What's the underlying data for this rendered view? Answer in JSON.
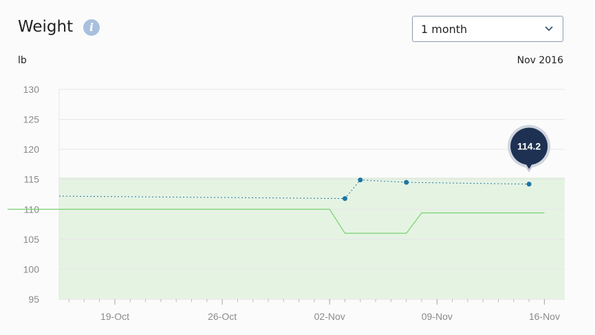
{
  "header": {
    "title": "Weight",
    "info_icon": "info-icon",
    "period_select": {
      "value": "1 month",
      "icon": "chevron-down-icon"
    }
  },
  "unit_label": "lb",
  "period_label": "Nov 2016",
  "colors": {
    "target_band": "#e5f3e3",
    "target_line": "#78d06e",
    "points": "#1e75a3",
    "tooltip_bg": "#1e3152",
    "grid": "#e6e6e6",
    "axis_text": "#8a8a8a"
  },
  "chart_data": {
    "type": "line",
    "ylim": [
      95,
      130
    ],
    "yticks": [
      95,
      100,
      105,
      110,
      115,
      120,
      125,
      130
    ],
    "xlim": [
      "2016-10-12",
      "2016-11-16"
    ],
    "xticks": [
      {
        "label": "19-Oct",
        "date": "2016-10-19"
      },
      {
        "label": "26-Oct",
        "date": "2016-10-26"
      },
      {
        "label": "02-Nov",
        "date": "2016-11-02"
      },
      {
        "label": "09-Nov",
        "date": "2016-11-09"
      },
      {
        "label": "16-Nov",
        "date": "2016-11-16"
      }
    ],
    "target_range_upper": 115.2,
    "series": [
      {
        "values": [
          {
            "x": "2016-10-12",
            "y": 112.2
          },
          {
            "x": "2016-11-03",
            "y": 111.8
          },
          {
            "x": "2016-11-04",
            "y": 114.9
          },
          {
            "x": "2016-11-07",
            "y": 114.5
          },
          {
            "x": "2016-11-15",
            "y": 114.2
          }
        ]
      },
      {
        "values": [
          {
            "x": "2016-10-12",
            "y": 110
          },
          {
            "x": "2016-11-02",
            "y": 110
          },
          {
            "x": "2016-11-03",
            "y": 106
          },
          {
            "x": "2016-11-07",
            "y": 106
          },
          {
            "x": "2016-11-08",
            "y": 109.4
          },
          {
            "x": "2016-11-16",
            "y": 109.4
          }
        ]
      }
    ],
    "highlight": {
      "x": "2016-11-15",
      "y": 114.2,
      "label": "114.2"
    }
  }
}
